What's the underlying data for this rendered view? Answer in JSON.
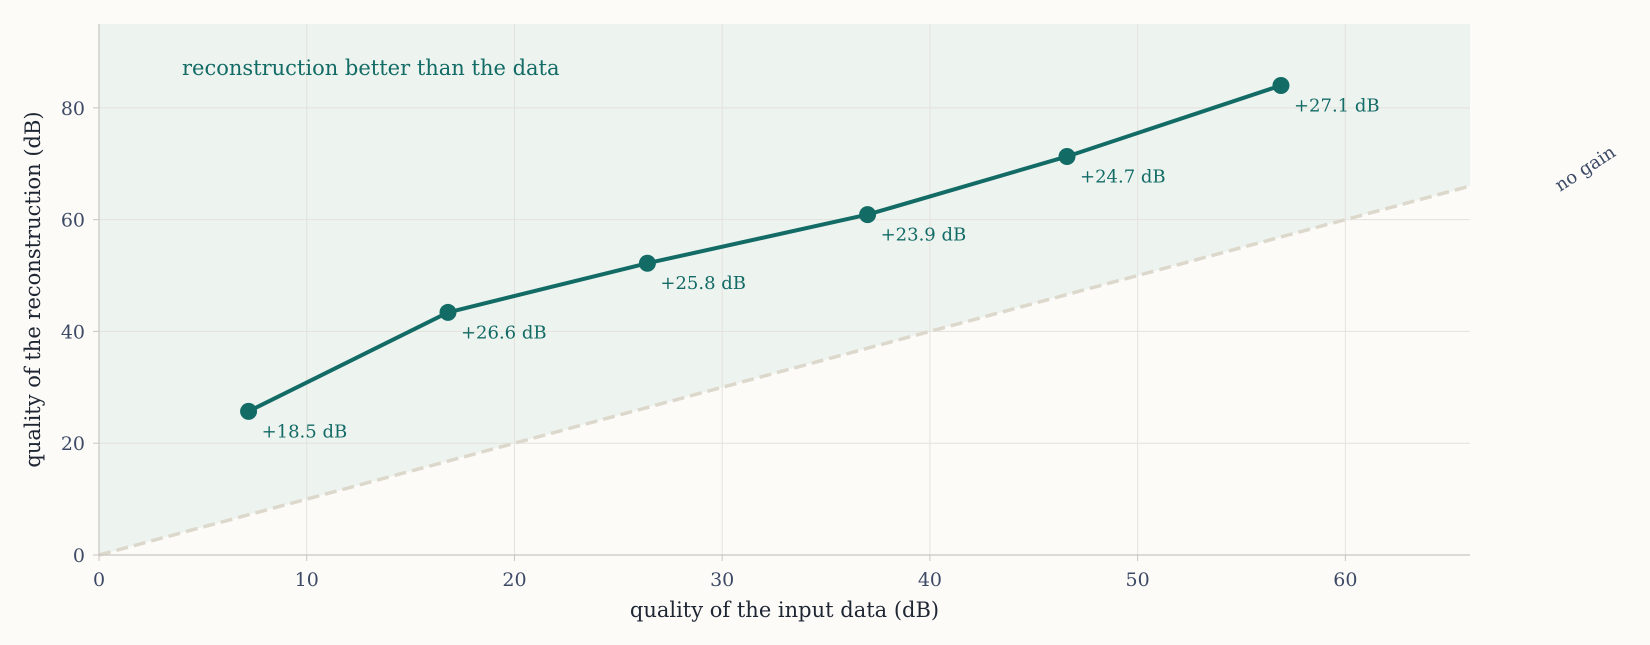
{
  "chart_data": {
    "type": "line",
    "xlabel": "quality of the input data (dB)",
    "ylabel": "quality of the reconstruction (dB)",
    "xlim": [
      0,
      66
    ],
    "ylim": [
      0,
      95
    ],
    "xticks": [
      0,
      10,
      20,
      30,
      40,
      50,
      60
    ],
    "yticks": [
      0,
      20,
      40,
      60,
      80
    ],
    "grid": true,
    "series": [
      {
        "x": [
          7.2,
          16.8,
          26.4,
          37.0,
          46.6,
          56.9
        ],
        "y": [
          25.7,
          43.4,
          52.2,
          60.9,
          71.3,
          84.0
        ],
        "labels": [
          "+18.5 dB",
          "+26.6 dB",
          "+25.8 dB",
          "+23.9 dB",
          "+24.7 dB",
          "+27.1 dB"
        ]
      }
    ],
    "reference_line": {
      "label": "no gain",
      "slope": 1
    },
    "region_label": "reconstruction better than the data",
    "colors": {
      "series": "#136b66",
      "region_fill": "#edf3ef",
      "reference": "#ddd8cc",
      "grid": "#e4e2dc",
      "axis": "#c8c6c0",
      "text": "#3d4a66"
    }
  }
}
